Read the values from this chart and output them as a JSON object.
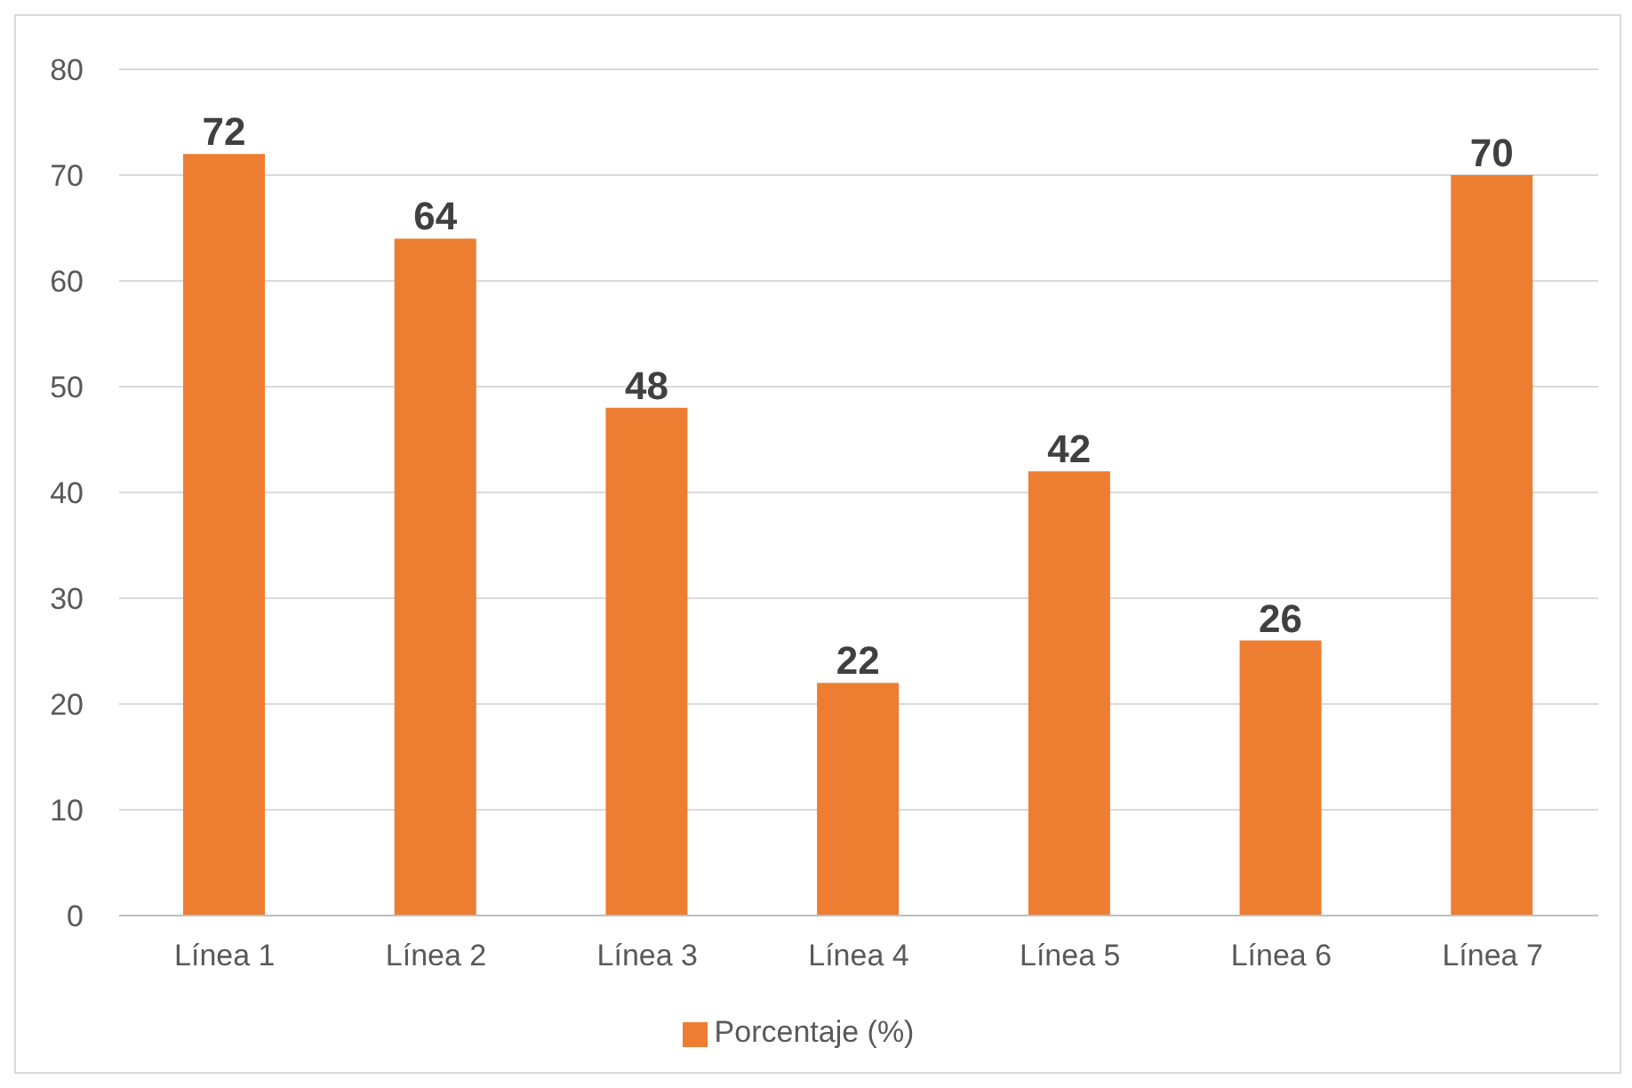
{
  "chart_data": {
    "type": "bar",
    "categories": [
      "Línea 1",
      "Línea 2",
      "Línea 3",
      "Línea 4",
      "Línea 5",
      "Línea 6",
      "Línea 7"
    ],
    "series": [
      {
        "name": "Porcentaje (%)",
        "color": "#ed7d31",
        "values": [
          72,
          64,
          48,
          22,
          42,
          26,
          70
        ]
      }
    ],
    "ylim": [
      0,
      80
    ],
    "yticks": [
      0,
      10,
      20,
      30,
      40,
      50,
      60,
      70,
      80
    ],
    "grid": "y",
    "legend": "bottom",
    "data_labels": true
  }
}
